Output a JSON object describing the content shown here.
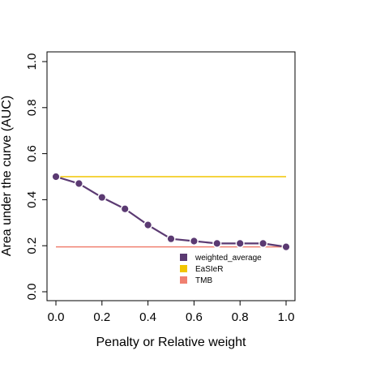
{
  "chart_data": {
    "type": "line",
    "xlabel": "Penalty or Relative weight",
    "ylabel": "Area under the curve (AUC)",
    "xlim": [
      0,
      1
    ],
    "ylim": [
      0,
      1
    ],
    "x_ticks": [
      "0.0",
      "0.2",
      "0.4",
      "0.6",
      "0.8",
      "1.0"
    ],
    "y_ticks": [
      "0.0",
      "0.2",
      "0.4",
      "0.6",
      "0.8",
      "1.0"
    ],
    "grid": false,
    "legend_position": "bottom-right",
    "series": [
      {
        "name": "weighted_average",
        "color": "#5b3a72",
        "markers": true,
        "x": [
          0.0,
          0.1,
          0.2,
          0.3,
          0.4,
          0.5,
          0.6,
          0.7,
          0.8,
          0.9,
          1.0
        ],
        "y": [
          0.5,
          0.47,
          0.41,
          0.36,
          0.29,
          0.23,
          0.22,
          0.21,
          0.21,
          0.21,
          0.195
        ]
      },
      {
        "name": "EaSIeR",
        "color": "#f2c500",
        "markers": false,
        "x": [
          0.0,
          1.0
        ],
        "y": [
          0.5,
          0.5
        ]
      },
      {
        "name": "TMB",
        "color": "#f08070",
        "markers": false,
        "x": [
          0.0,
          1.0
        ],
        "y": [
          0.195,
          0.195
        ]
      }
    ]
  }
}
